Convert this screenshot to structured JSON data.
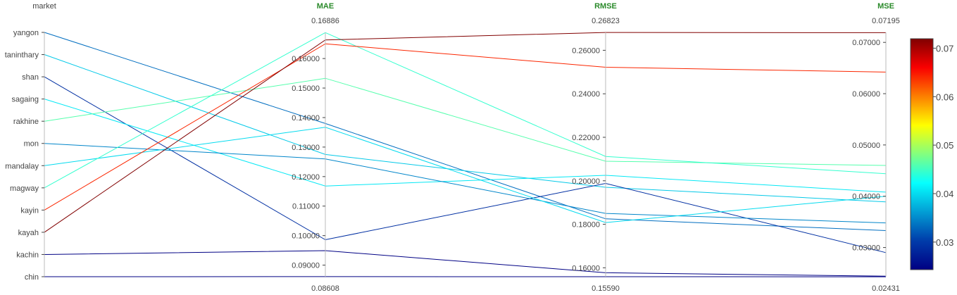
{
  "chart_data": {
    "type": "parcoords",
    "axes": [
      {
        "name": "market",
        "categorical": true,
        "ticks": [
          "yangon",
          "taninthary",
          "shan",
          "sagaing",
          "rakhine",
          "mon",
          "mandalay",
          "magway",
          "kayin",
          "kayah",
          "kachin",
          "chin"
        ]
      },
      {
        "name": "MAE",
        "categorical": false,
        "range": [
          0.08608,
          0.16886
        ],
        "range_labels": {
          "min": "0.08608",
          "max": "0.16886"
        },
        "ticks": [
          0.09,
          0.1,
          0.11,
          0.12,
          0.13,
          0.14,
          0.15,
          0.16
        ],
        "tick_labels": [
          "0.09000",
          "0.10000",
          "0.11000",
          "0.12000",
          "0.13000",
          "0.14000",
          "0.15000",
          "0.16000"
        ]
      },
      {
        "name": "RMSE",
        "categorical": false,
        "range": [
          0.1559,
          0.26823
        ],
        "range_labels": {
          "min": "0.15590",
          "max": "0.26823"
        },
        "ticks": [
          0.16,
          0.18,
          0.2,
          0.22,
          0.24,
          0.26
        ],
        "tick_labels": [
          "0.16000",
          "0.18000",
          "0.20000",
          "0.22000",
          "0.24000",
          "0.26000"
        ]
      },
      {
        "name": "MSE",
        "categorical": false,
        "range": [
          0.02431,
          0.07195
        ],
        "range_labels": {
          "min": "0.02431",
          "max": "0.07195"
        },
        "ticks": [
          0.03,
          0.04,
          0.05,
          0.06,
          0.07
        ],
        "tick_labels": [
          "0.03000",
          "0.04000",
          "0.05000",
          "0.06000",
          "0.07000"
        ]
      }
    ],
    "records": [
      {
        "market": "yangon",
        "MAE": 0.138,
        "RMSE": 0.1825,
        "MSE": 0.0333
      },
      {
        "market": "taninthary",
        "MAE": 0.1275,
        "RMSE": 0.197,
        "MSE": 0.0389
      },
      {
        "market": "shan",
        "MAE": 0.0986,
        "RMSE": 0.1988,
        "MSE": 0.029
      },
      {
        "market": "sagaing",
        "MAE": 0.1168,
        "RMSE": 0.2025,
        "MSE": 0.0408
      },
      {
        "market": "rakhine",
        "MAE": 0.1533,
        "RMSE": 0.209,
        "MSE": 0.046
      },
      {
        "market": "mon",
        "MAE": 0.126,
        "RMSE": 0.185,
        "MSE": 0.0348
      },
      {
        "market": "mandalay",
        "MAE": 0.1367,
        "RMSE": 0.1808,
        "MSE": 0.04
      },
      {
        "market": "magway",
        "MAE": 0.1688,
        "RMSE": 0.2112,
        "MSE": 0.0444
      },
      {
        "market": "kayin",
        "MAE": 0.165,
        "RMSE": 0.2522,
        "MSE": 0.0642
      },
      {
        "market": "kayah",
        "MAE": 0.1663,
        "RMSE": 0.2682,
        "MSE": 0.0719
      },
      {
        "market": "kachin",
        "MAE": 0.0949,
        "RMSE": 0.1577,
        "MSE": 0.0244
      },
      {
        "market": "chin",
        "MAE": 0.0861,
        "RMSE": 0.1559,
        "MSE": 0.0243
      }
    ],
    "color_by": "MSE",
    "colorscale": "Jet",
    "colorbar": {
      "range": [
        0.02431,
        0.07195
      ],
      "ticks": [
        0.03,
        0.04,
        0.05,
        0.06,
        0.07
      ],
      "tick_labels": [
        "0.03",
        "0.04",
        "0.05",
        "0.06",
        "0.07"
      ]
    },
    "jet_colors": [
      "#000083",
      "#003caa",
      "#05ffff",
      "#ffff00",
      "#fa0000",
      "#800000"
    ]
  }
}
